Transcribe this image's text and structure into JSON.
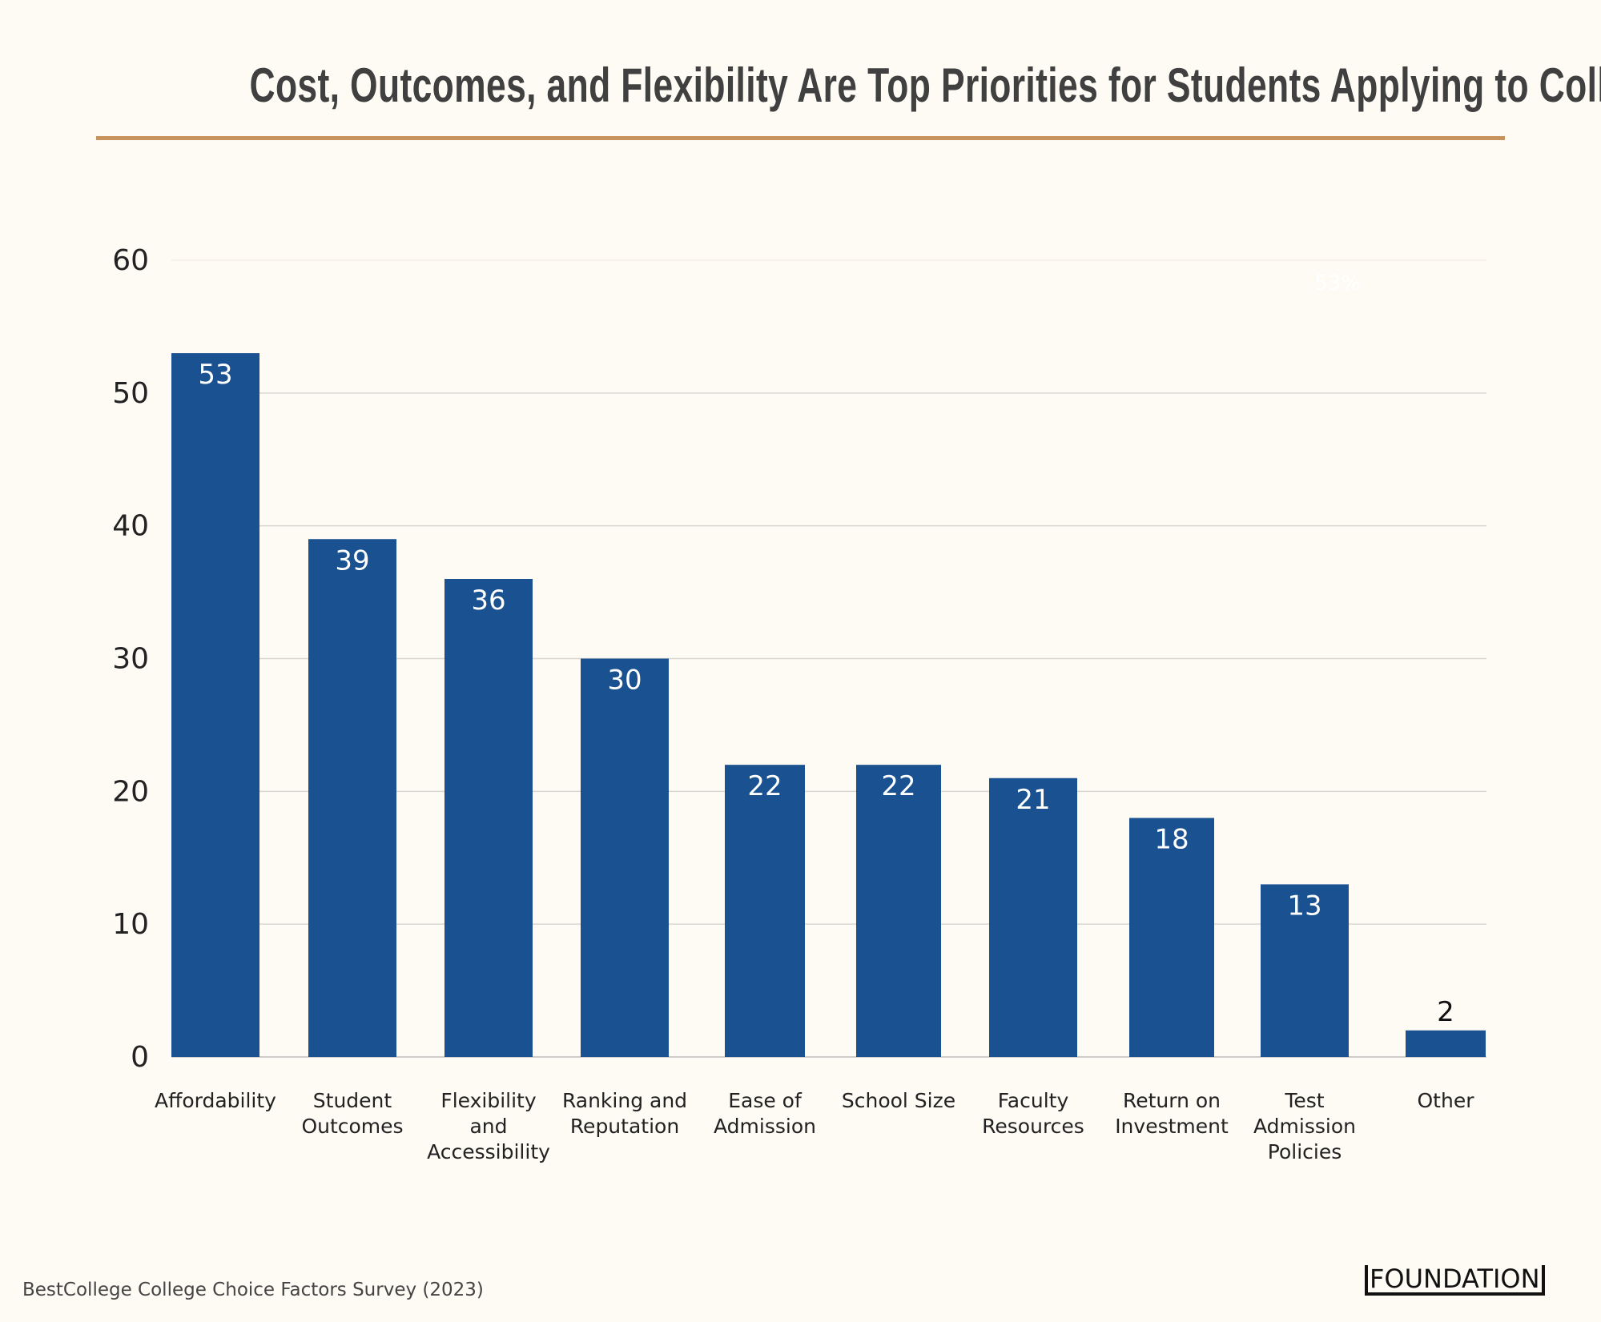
{
  "chart_data": {
    "type": "bar",
    "title": "Cost, Outcomes, and Flexibility Are Top Priorities for Students Applying to College",
    "categories": [
      "Affordability",
      "Student\nOutcomes",
      "Flexibility\nand\nAccessibility",
      "Ranking and\nReputation",
      "Ease of\nAdmission",
      "School Size",
      "Faculty\nResources",
      "Return on\nInvestment",
      "Test\nAdmission\nPolicies",
      "Other"
    ],
    "values": [
      53,
      39,
      36,
      30,
      22,
      22,
      21,
      18,
      13,
      2
    ],
    "data_labels": [
      "53",
      "39",
      "36",
      "30",
      "22",
      "22",
      "21",
      "18",
      "13",
      "2"
    ],
    "ylim": [
      0,
      60
    ],
    "yticks": [
      0,
      10,
      20,
      30,
      40,
      50,
      60
    ],
    "xlabel": "",
    "ylabel": "",
    "grid": true,
    "faint_annotation": "53%",
    "colors": {
      "bar": "#1a5190",
      "background": "#fefbf5",
      "accent_rule": "#c8925c",
      "grid": "#d9d6d0"
    }
  },
  "source": "BestCollege College Choice Factors Survey (2023)",
  "logo": "FOUNDATION"
}
